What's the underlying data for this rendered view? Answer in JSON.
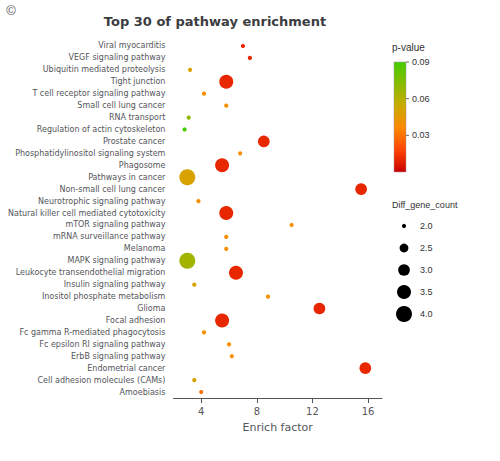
{
  "chart_data": {
    "type": "scatter",
    "title": "Top 30 of pathway enrichment",
    "xlabel": "Enrich factor",
    "annotation": "©",
    "categories": [
      "Viral myocarditis",
      "VEGF signaling pathway",
      "Ubiquitin mediated proteolysis",
      "Tight junction",
      "T cell receptor signaling pathway",
      "Small cell lung cancer",
      "RNA transport",
      "Regulation of actin cytoskeleton",
      "Prostate cancer",
      "Phosphatidylinositol signaling system",
      "Phagosome",
      "Pathways in cancer",
      "Non-small cell lung cancer",
      "Neurotrophic signaling pathway",
      "Natural killer cell mediated cytotoxicity",
      "mTOR signaling pathway",
      "mRNA surveillance pathway",
      "Melanoma",
      "MAPK signaling pathway",
      "Leukocyte transendothelial migration",
      "Insulin signaling pathway",
      "Inositol phosphate metabolism",
      "Glioma",
      "Focal adhesion",
      "Fc gamma R-mediated phagocytosis",
      "Fc epsilon RI signaling pathway",
      "ErbB signaling pathway",
      "Endometrial cancer",
      "Cell adhesion molecules (CAMs)",
      "Amoebiasis"
    ],
    "values": [
      7.0,
      7.5,
      3.2,
      5.8,
      4.2,
      5.8,
      3.1,
      2.8,
      8.5,
      6.8,
      5.5,
      3.0,
      15.5,
      3.8,
      5.8,
      10.5,
      5.8,
      5.8,
      3.0,
      6.5,
      3.5,
      8.8,
      12.5,
      5.5,
      4.2,
      6.0,
      6.2,
      15.8,
      3.5,
      4.0
    ],
    "sizes": [
      2.0,
      2.0,
      2.0,
      3.5,
      2.0,
      2.0,
      2.0,
      2.0,
      3.0,
      2.0,
      3.5,
      4.0,
      3.0,
      2.0,
      3.5,
      2.0,
      2.0,
      2.0,
      4.0,
      3.5,
      2.0,
      2.0,
      3.0,
      3.5,
      2.0,
      2.0,
      2.0,
      3.0,
      2.0,
      2.0
    ],
    "p_values": [
      0.01,
      0.01,
      0.05,
      0.01,
      0.04,
      0.04,
      0.07,
      0.09,
      0.01,
      0.04,
      0.01,
      0.05,
      0.01,
      0.04,
      0.01,
      0.04,
      0.04,
      0.04,
      0.065,
      0.01,
      0.05,
      0.04,
      0.01,
      0.01,
      0.04,
      0.04,
      0.04,
      0.01,
      0.05,
      0.03
    ],
    "xlim": [
      2,
      17
    ],
    "xticks": [
      4,
      8,
      12,
      16
    ],
    "grid": false,
    "color_label": "p-value",
    "color_scale": [
      "#cc0000",
      "#ff4400",
      "#ff8800",
      "#ccaa00",
      "#88bb00",
      "#44cc00"
    ],
    "color_range": [
      0.0,
      0.09
    ],
    "color_ticks": [
      0.03,
      0.06,
      0.09
    ],
    "size_label": "Diff_gene_count",
    "size_legend": [
      {
        "value": 2.0,
        "label": "2.0"
      },
      {
        "value": 2.5,
        "label": "2.5"
      },
      {
        "value": 3.0,
        "label": "3.0"
      },
      {
        "value": 3.5,
        "label": "3.5"
      },
      {
        "value": 4.0,
        "label": "4.0"
      }
    ]
  }
}
